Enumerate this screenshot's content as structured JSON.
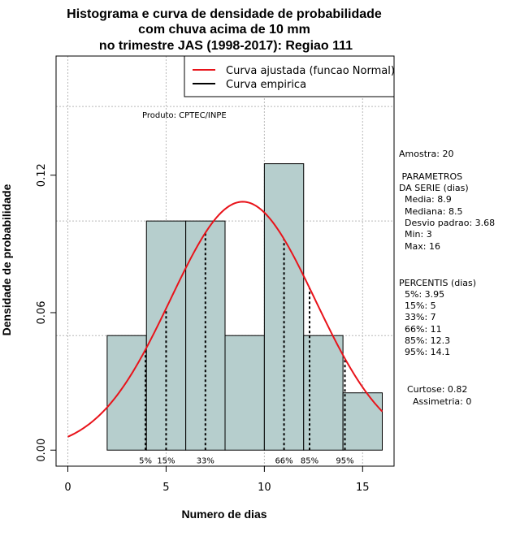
{
  "chart_data": {
    "type": "histogram",
    "title_lines": [
      "Histograma e curva de densidade de probabilidade",
      "com chuva acima de 10 mm",
      "no trimestre JAS (1998-2017): Regiao 111"
    ],
    "xlabel": "Numero de dias",
    "ylabel": "Densidade de probabilidade",
    "xlim": [
      -0.6,
      16.6
    ],
    "ylim": [
      -0.007,
      0.172
    ],
    "x_ticks": [
      0,
      5,
      10,
      15
    ],
    "x_tick_labels": [
      "0",
      "5",
      "10",
      "15"
    ],
    "y_ticks": [
      0.0,
      0.06,
      0.12
    ],
    "y_tick_labels": [
      "0.00",
      "0.06",
      "0.12"
    ],
    "grid_x": [
      0,
      5,
      10,
      15
    ],
    "grid_y": [
      0.05,
      0.1,
      0.15
    ],
    "bins": [
      {
        "x0": 2,
        "x1": 4,
        "density": 0.05
      },
      {
        "x0": 4,
        "x1": 6,
        "density": 0.1
      },
      {
        "x0": 6,
        "x1": 8,
        "density": 0.1
      },
      {
        "x0": 8,
        "x1": 10,
        "density": 0.05
      },
      {
        "x0": 10,
        "x1": 12,
        "density": 0.125
      },
      {
        "x0": 12,
        "x1": 14,
        "density": 0.05
      },
      {
        "x0": 14,
        "x1": 16,
        "density": 0.025
      }
    ],
    "bar_color": "#b6cecd",
    "normal_curve": {
      "mean": 8.9,
      "sd": 3.68,
      "x_from": 0,
      "x_to": 16,
      "color": "#e8131a"
    },
    "percentile_lines": [
      {
        "label": "5%",
        "x": 3.95
      },
      {
        "label": "15%",
        "x": 5
      },
      {
        "label": "33%",
        "x": 7
      },
      {
        "label": "66%",
        "x": 11
      },
      {
        "label": "85%",
        "x": 12.3
      },
      {
        "label": "95%",
        "x": 14.1
      }
    ],
    "legend": {
      "position": "top-right",
      "entries": [
        {
          "label": "Curva ajustada (funcao Normal)",
          "color": "#e8131a"
        },
        {
          "label": "Curva empirica",
          "color": "#000000"
        }
      ]
    },
    "annotation": "Produto: CPTEC/INPE"
  },
  "stats": {
    "amostra": "Amostra: 20",
    "parametros_title": " PARAMETROS",
    "serie_title": "DA SERIE (dias)",
    "media": "Media: 8.9",
    "mediana": "Mediana: 8.5",
    "desvio": "Desvio padrao: 3.68",
    "min": "Min: 3",
    "max": "Max: 16",
    "percentis_title": "PERCENTIS (dias)",
    "p5": "5%: 3.95",
    "p15": "15%: 5",
    "p33": "33%: 7",
    "p66": "66%: 11",
    "p85": "85%: 12.3",
    "p95": "95%: 14.1",
    "curtose": "Curtose: 0.82",
    "assimetria": "Assimetria: 0"
  }
}
